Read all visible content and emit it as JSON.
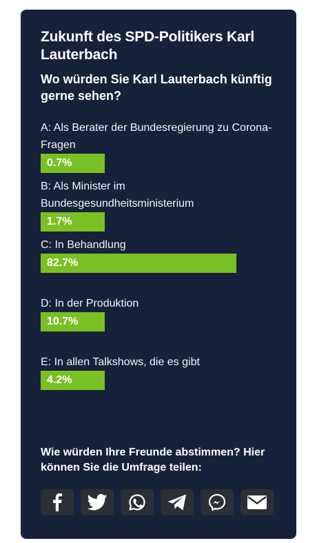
{
  "poll": {
    "title": "Zukunft des SPD-Politikers Karl Lauterbach",
    "question": "Wo würden Sie Karl Lauterbach künftig gerne sehen?",
    "options": [
      {
        "label": "A: Als Berater der Bundesregierung zu Corona-Fragen",
        "percent_label": "0.7%",
        "bar_fill_percent": 27
      },
      {
        "label": "B: Als Minister im Bundesgesundheitsministerium",
        "percent_label": "1.7%",
        "bar_fill_percent": 27
      },
      {
        "label": "C: In Behandlung",
        "percent_label": "82.7%",
        "bar_fill_percent": 82.7
      },
      {
        "label": "D: In der Produktion",
        "percent_label": "10.7%",
        "bar_fill_percent": 27
      },
      {
        "label": "E: In allen Talkshows, die es gibt",
        "percent_label": "4.2%",
        "bar_fill_percent": 27
      }
    ],
    "bar_color": "#79c025",
    "card_color": "#18213a"
  },
  "share": {
    "prompt": "Wie würden Ihre Freunde abstimmen? Hier können Sie die Umfrage teilen:",
    "buttons": [
      {
        "icon": "facebook-icon"
      },
      {
        "icon": "twitter-icon"
      },
      {
        "icon": "whatsapp-icon"
      },
      {
        "icon": "telegram-icon"
      },
      {
        "icon": "messenger-icon"
      },
      {
        "icon": "email-icon"
      }
    ],
    "button_color": "#2c2f35"
  }
}
